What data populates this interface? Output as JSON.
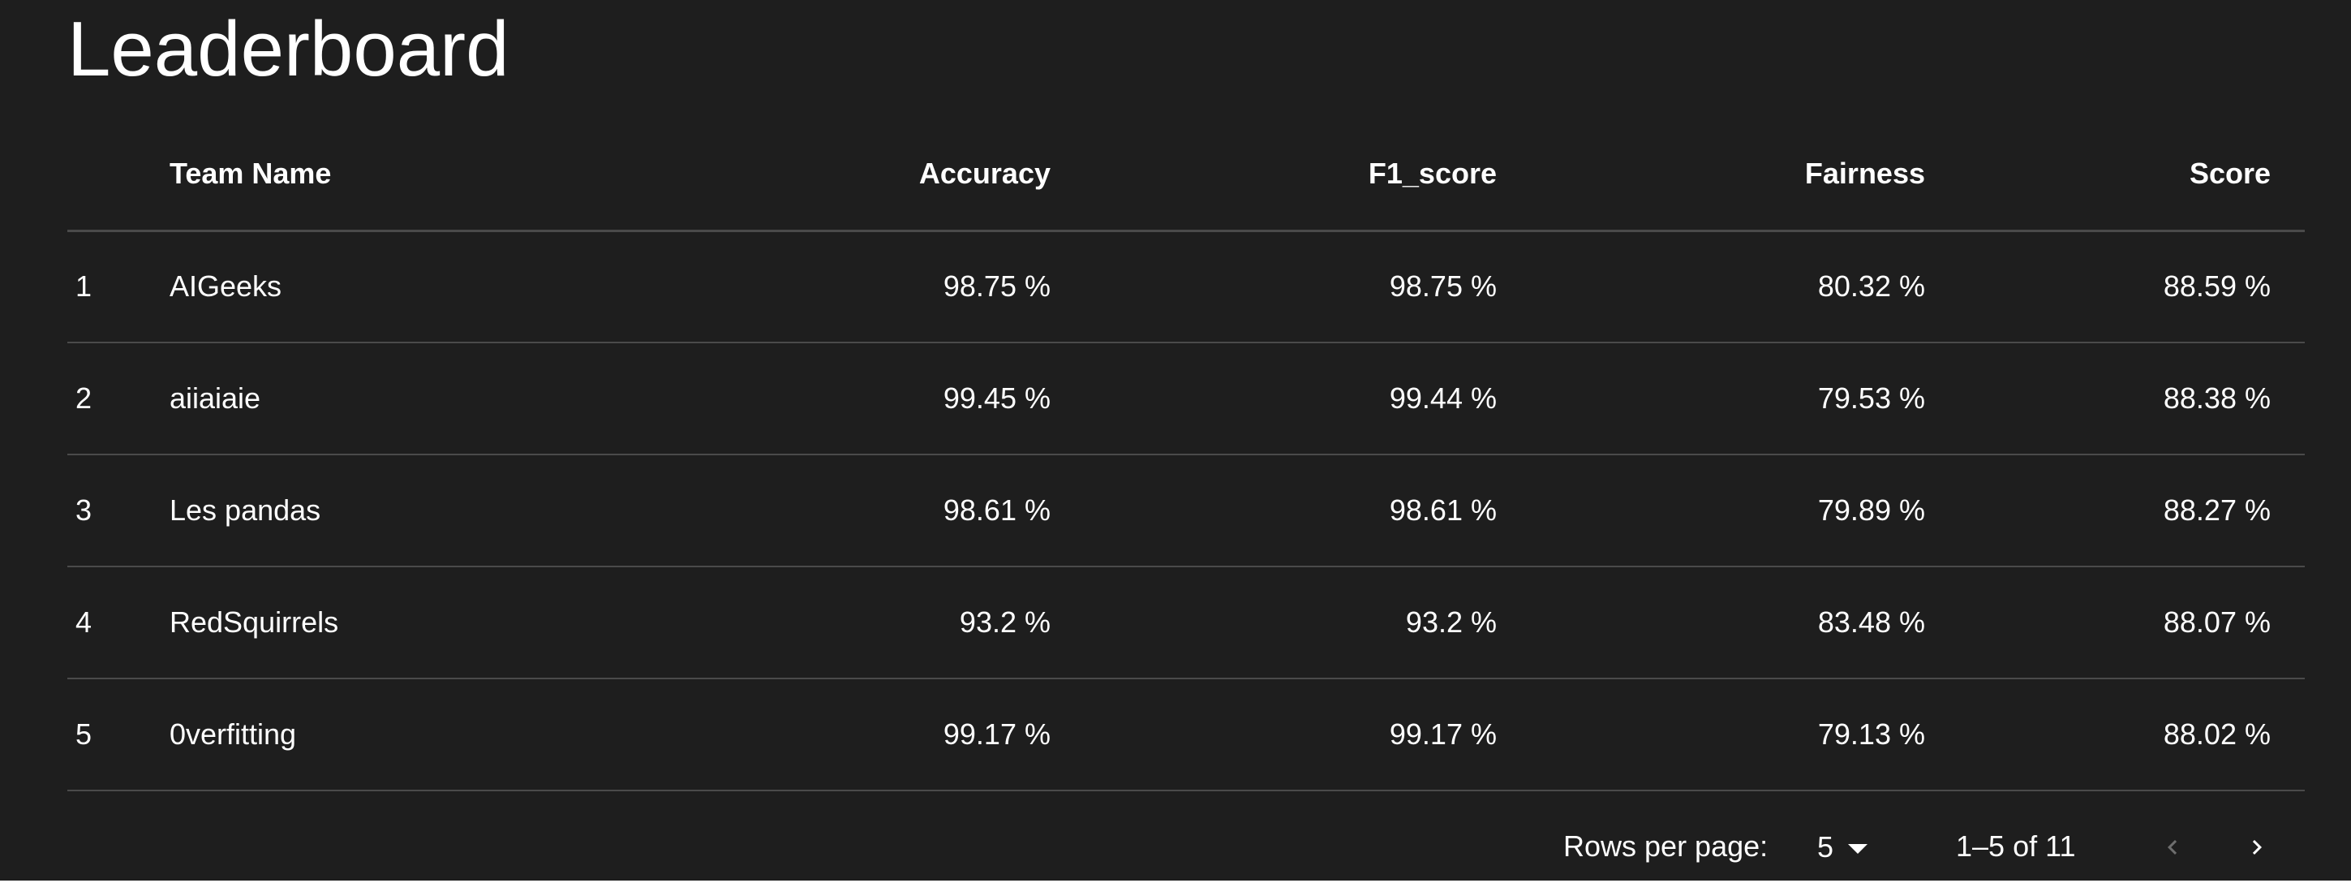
{
  "title": "Leaderboard",
  "columns": {
    "team": "Team Name",
    "accuracy": "Accuracy",
    "f1": "F1_score",
    "fairness": "Fairness",
    "score": "Score"
  },
  "rows": [
    {
      "rank": "1",
      "team": "AIGeeks",
      "accuracy": "98.75 %",
      "f1": "98.75 %",
      "fairness": "80.32 %",
      "score": "88.59 %"
    },
    {
      "rank": "2",
      "team": "aiiaiaie",
      "accuracy": "99.45 %",
      "f1": "99.44 %",
      "fairness": "79.53 %",
      "score": "88.38 %"
    },
    {
      "rank": "3",
      "team": "Les pandas",
      "accuracy": "98.61 %",
      "f1": "98.61 %",
      "fairness": "79.89 %",
      "score": "88.27 %"
    },
    {
      "rank": "4",
      "team": "RedSquirrels",
      "accuracy": "93.2 %",
      "f1": "93.2 %",
      "fairness": "83.48 %",
      "score": "88.07 %"
    },
    {
      "rank": "5",
      "team": "0verfitting",
      "accuracy": "99.17 %",
      "f1": "99.17 %",
      "fairness": "79.13 %",
      "score": "88.02 %"
    }
  ],
  "pagination": {
    "rows_per_page_label": "Rows per page:",
    "rows_per_page_value": "5",
    "range_text": "1–5 of 11",
    "prev_icon": "chevron-left-icon",
    "next_icon": "chevron-right-icon"
  },
  "colors": {
    "background": "#1e1e1e",
    "text": "#ffffff",
    "divider": "#4a4a4a",
    "disabled": "#6e6e6e"
  }
}
